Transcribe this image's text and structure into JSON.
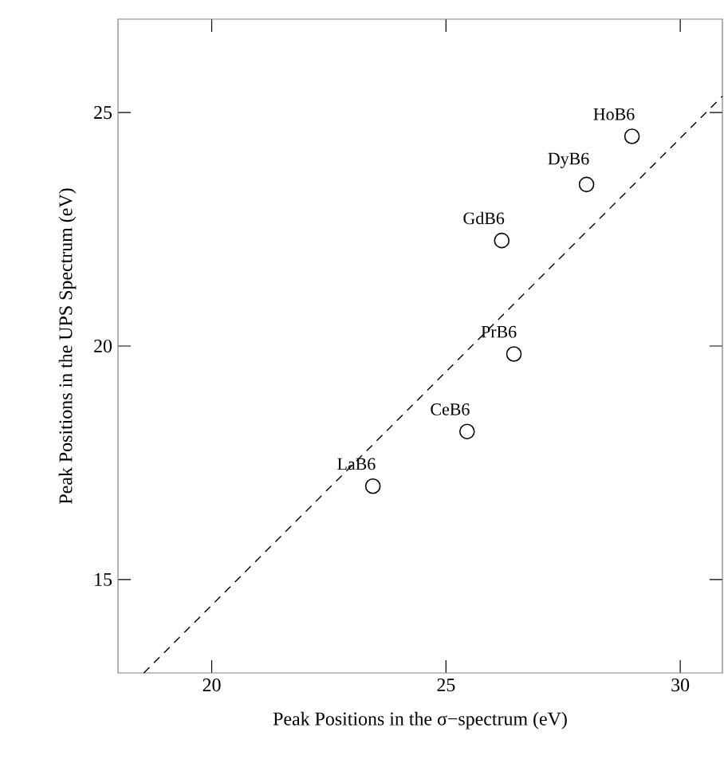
{
  "chart_data": {
    "type": "scatter",
    "xlabel": "Peak Positions in the σ−spectrum (eV)",
    "ylabel": "Peak Positions in the UPS Spectrum (eV)",
    "xlim": [
      18,
      30.9
    ],
    "ylim": [
      13,
      27
    ],
    "xticks": [
      20,
      25,
      30
    ],
    "yticks": [
      15,
      20,
      25
    ],
    "series": [
      {
        "color": "#000000",
        "marker": "circle",
        "x": [
          23.44,
          25.45,
          26.45,
          26.19,
          28.0,
          28.97
        ],
        "values": [
          17.0,
          18.17,
          19.83,
          22.26,
          23.46,
          24.49
        ]
      },
      {
        "type": "line",
        "color": "#000000",
        "line_style": "dashed",
        "x": [
          18.55,
          30.9
        ],
        "values": [
          13,
          25.35
        ]
      }
    ],
    "annotations": [
      {
        "text": "LaB6",
        "x": 23.44,
        "y": 17.0
      },
      {
        "text": "CeB6",
        "x": 25.45,
        "y": 18.17
      },
      {
        "text": "PrB6",
        "x": 26.45,
        "y": 19.83
      },
      {
        "text": "GdB6",
        "x": 26.19,
        "y": 22.26
      },
      {
        "text": "DyB6",
        "x": 28.0,
        "y": 23.46
      },
      {
        "text": "HoB6",
        "x": 28.97,
        "y": 24.49
      }
    ]
  }
}
